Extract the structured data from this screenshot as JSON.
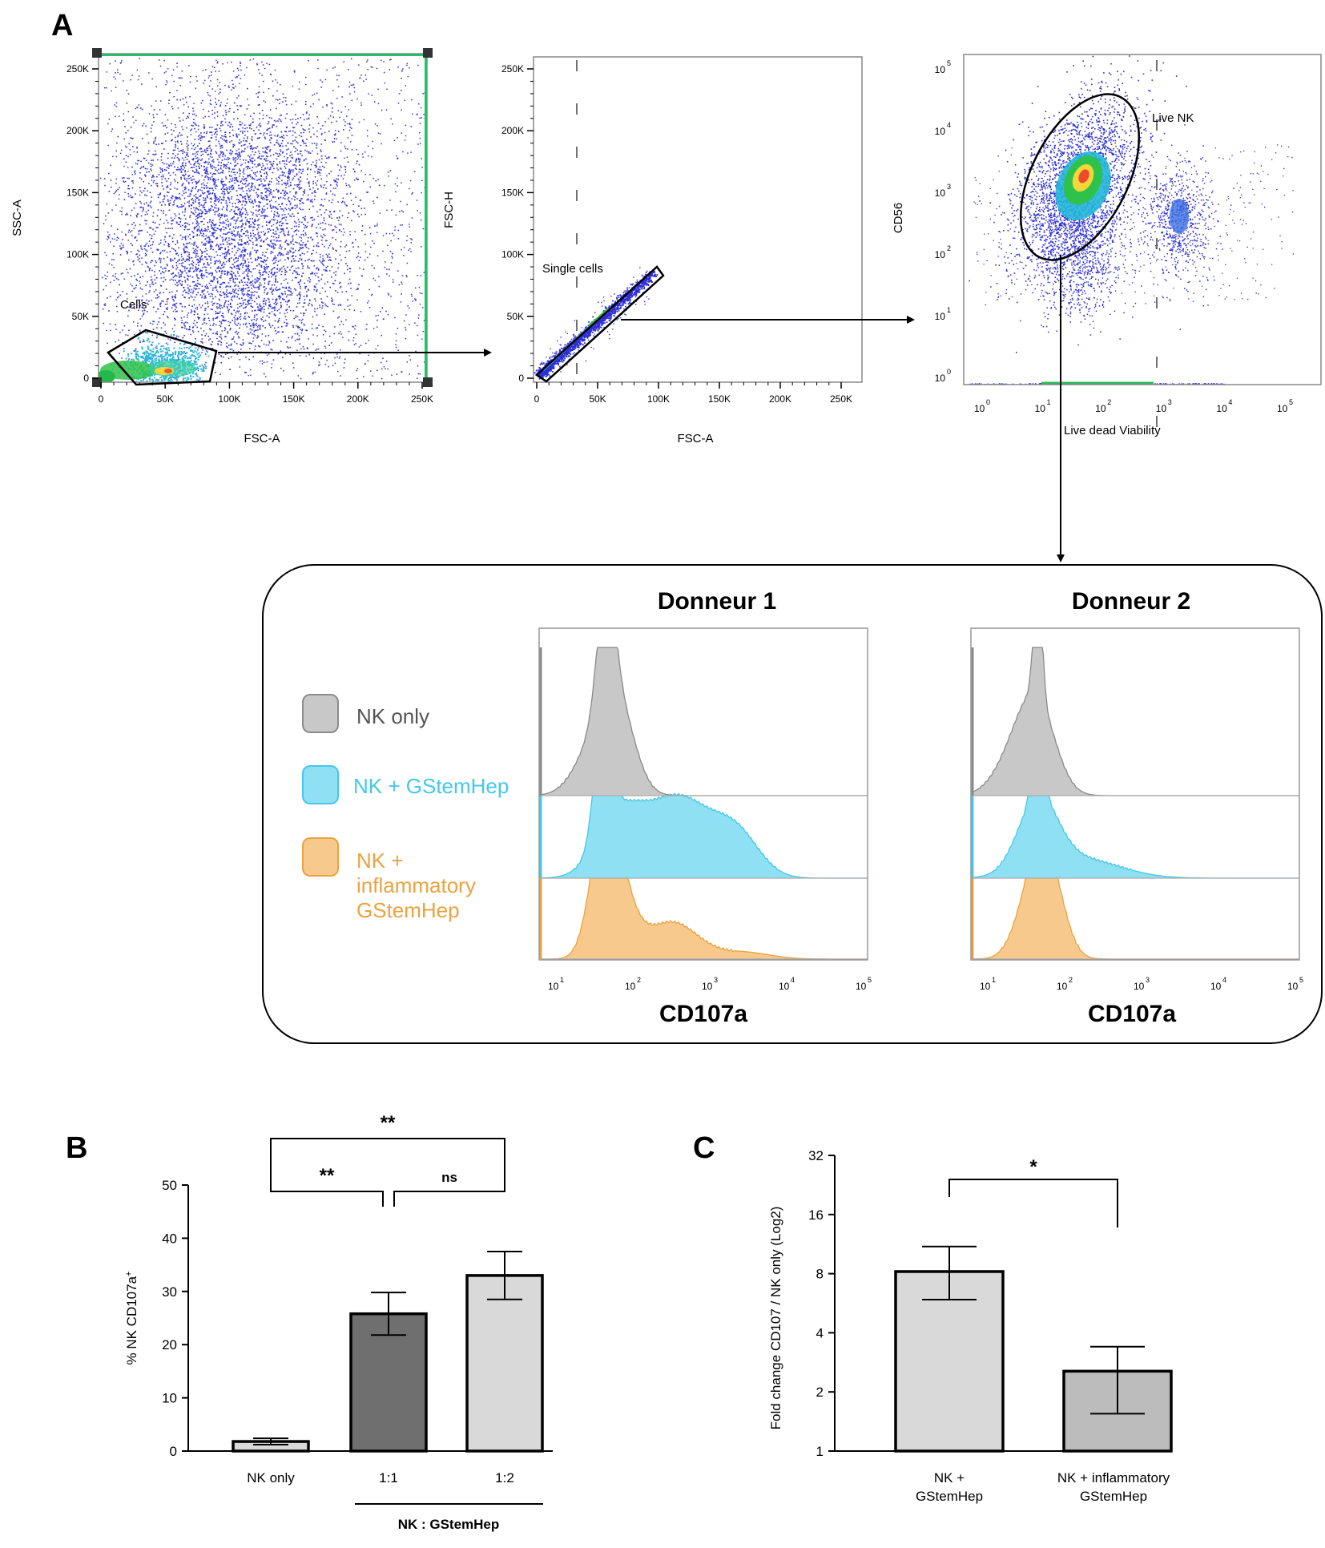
{
  "panels": {
    "a": "A",
    "b": "B",
    "c": "C"
  },
  "colors": {
    "nk_only": "#c8c8c8",
    "nk_gstemhep": "#8ee0f2",
    "nk_inflammatory": "#f7c98d",
    "legend_text_gray": "#555555",
    "legend_text_blue": "#45c8ea",
    "legend_text_orange": "#e9a33f",
    "scatter_blue": "#2d2ed6",
    "bar_dark": "#6f6f6f",
    "bar_light": "#d9d9d9",
    "bar_mid": "#bcbcbc"
  },
  "gating": {
    "plot1": {
      "xlabel": "FSC-A",
      "ylabel": "SSC-A",
      "right_label": "FSC-H",
      "gate": "Cells",
      "xticks": [
        "0",
        "50K",
        "100K",
        "150K",
        "200K",
        "250K"
      ],
      "yticks": [
        "0",
        "50K",
        "100K",
        "150K",
        "200K",
        "250K"
      ]
    },
    "plot2": {
      "xlabel": "FSC-A",
      "gate": "Single cells",
      "xticks": [
        "0",
        "50K",
        "100K",
        "150K",
        "200K",
        "250K"
      ],
      "yticks": [
        "0",
        "50K",
        "100K",
        "150K",
        "200K",
        "250K"
      ]
    },
    "plot3": {
      "xlabel": "Live dead Viability",
      "ylabel": "CD56",
      "gate": "Live NK",
      "exponents": [
        "0",
        "1",
        "2",
        "3",
        "4",
        "5"
      ]
    }
  },
  "histograms": {
    "legend": [
      "NK only",
      "NK + GStemHep",
      "NK +",
      "inflammatory",
      "GStemHep"
    ],
    "donor1": "Donneur 1",
    "donor2": "Donneur 2",
    "xlabel": "CD107a",
    "exponents": [
      "1",
      "2",
      "3",
      "4",
      "5"
    ]
  },
  "chart_data": [
    {
      "type": "bar",
      "panel": "B",
      "categories": [
        "NK only",
        "1:1",
        "1:2"
      ],
      "values": [
        1.8,
        25.8,
        33.0
      ],
      "errors": [
        0.6,
        4.0,
        4.5
      ],
      "title": "",
      "xlabel": "NK : GStemHep",
      "ylabel": "% NK CD107a",
      "ylabel_sup": "+",
      "ylim": [
        0,
        50
      ],
      "yticks": [
        "0",
        "10",
        "20",
        "30",
        "40",
        "50"
      ],
      "significance": [
        {
          "from": "NK only",
          "to": "1:1",
          "label": "**"
        },
        {
          "from": "1:1",
          "to": "1:2",
          "label": "ns"
        },
        {
          "from": "NK only",
          "to": "1:2",
          "label": "**"
        }
      ]
    },
    {
      "type": "bar",
      "panel": "C",
      "categories": [
        "NK + GStemHep",
        "NK + inflammatory GStemHep"
      ],
      "category_lines": [
        [
          "NK +",
          "GStemHep"
        ],
        [
          "NK + inflammatory",
          "GStemHep"
        ]
      ],
      "values": [
        8.2,
        2.55
      ],
      "error_upper": [
        11.0,
        3.4
      ],
      "error_lower": [
        5.9,
        1.55
      ],
      "title": "",
      "ylabel": "Fold change CD107 / NK only (Log2)",
      "yscale": "log2",
      "ylim": [
        1,
        32
      ],
      "yticks": [
        "1",
        "2",
        "4",
        "8",
        "16",
        "32"
      ],
      "significance": [
        {
          "from": "NK + GStemHep",
          "to": "NK + inflammatory GStemHep",
          "label": "*"
        }
      ]
    }
  ]
}
